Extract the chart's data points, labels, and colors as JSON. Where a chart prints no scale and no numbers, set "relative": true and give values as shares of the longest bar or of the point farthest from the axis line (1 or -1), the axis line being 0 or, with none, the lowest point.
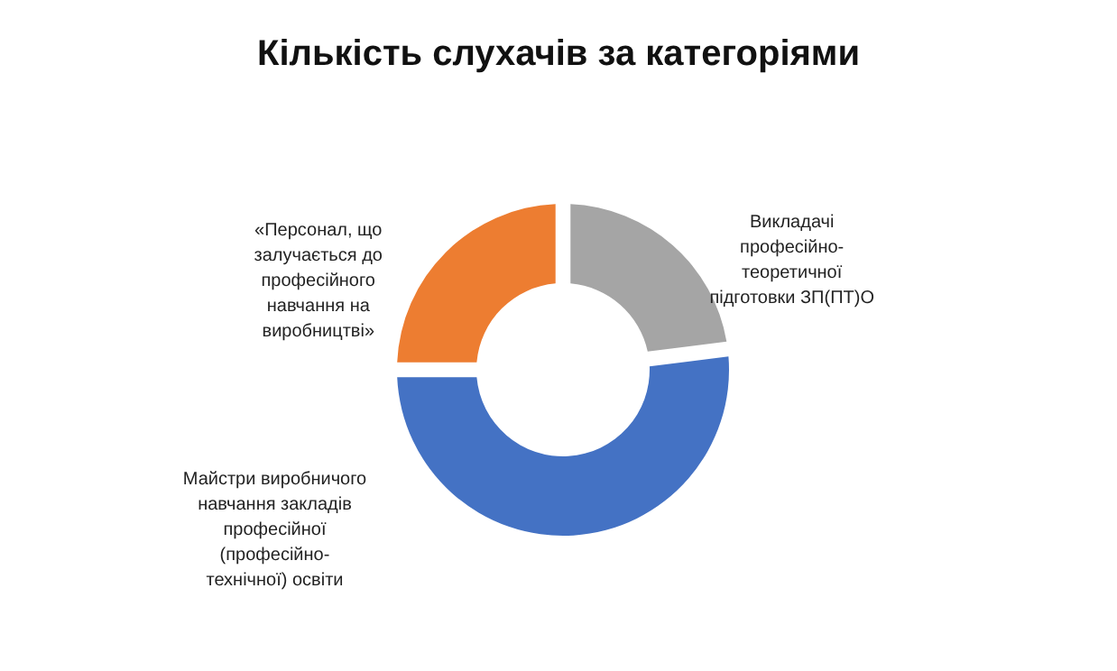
{
  "chart_data": {
    "type": "donut",
    "title": "Кількість слухачів за категоріями",
    "relative": true,
    "categories": [
      "Викладачі професійно-теоретичної підготовки ЗП(ПТ)О",
      "Майстри виробничого навчання закладів професійної (професійно-технічної) освіти",
      "«Персонал, що залучається до професійного навчання на виробництві»"
    ],
    "values": [
      23,
      52,
      25
    ],
    "colors": [
      "#a5a5a5",
      "#4472c4",
      "#ed7d31"
    ],
    "legend": false
  }
}
